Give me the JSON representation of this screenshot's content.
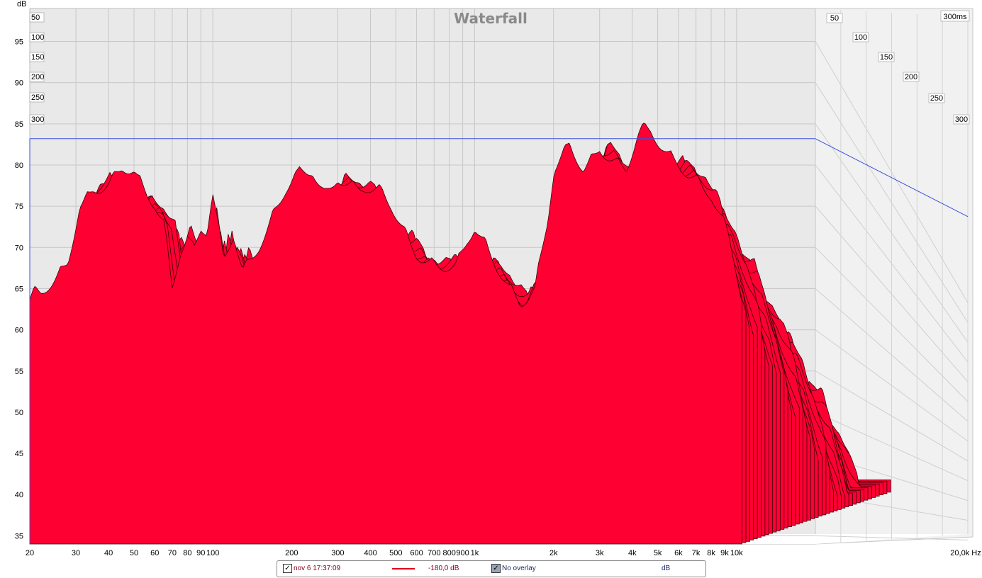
{
  "chart_data": {
    "type": "area",
    "title": "Waterfall",
    "ylabel": "dB",
    "xlabel_unit": "Hz",
    "ylim": [
      34,
      99
    ],
    "xlim": [
      20,
      20000
    ],
    "x_scale": "log",
    "y_ticks": [
      "95",
      "90",
      "85",
      "80",
      "75",
      "70",
      "65",
      "60",
      "55",
      "50",
      "45",
      "40",
      "35"
    ],
    "x_ticks": [
      {
        "v": 20,
        "t": "20"
      },
      {
        "v": 30,
        "t": "30"
      },
      {
        "v": 40,
        "t": "40"
      },
      {
        "v": 50,
        "t": "50"
      },
      {
        "v": 60,
        "t": "60"
      },
      {
        "v": 70,
        "t": "70"
      },
      {
        "v": 80,
        "t": "80"
      },
      {
        "v": 90,
        "t": "90"
      },
      {
        "v": 100,
        "t": "100"
      },
      {
        "v": 200,
        "t": "200"
      },
      {
        "v": 300,
        "t": "300"
      },
      {
        "v": 400,
        "t": "400"
      },
      {
        "v": 500,
        "t": "500"
      },
      {
        "v": 600,
        "t": "600"
      },
      {
        "v": 700,
        "t": "700"
      },
      {
        "v": 800,
        "t": "800"
      },
      {
        "v": 900,
        "t": "900"
      },
      {
        "v": 1000,
        "t": "1k"
      },
      {
        "v": 2000,
        "t": "2k"
      },
      {
        "v": 3000,
        "t": "3k"
      },
      {
        "v": 4000,
        "t": "4k"
      },
      {
        "v": 5000,
        "t": "5k"
      },
      {
        "v": 6000,
        "t": "6k"
      },
      {
        "v": 7000,
        "t": "7k"
      },
      {
        "v": 8000,
        "t": "8k"
      },
      {
        "v": 9000,
        "t": "9k"
      },
      {
        "v": 10000,
        "t": "10k"
      },
      {
        "v": 20000,
        "t": "20,0k Hz"
      }
    ],
    "time_labels": [
      "50",
      "100",
      "150",
      "200",
      "250",
      "300"
    ],
    "time_axis_label": "300ms",
    "reference_level_db": 83.2,
    "fill_color": "#ff0033",
    "outline_color": "#3a0008",
    "slices": 40,
    "envelope": {
      "freq": [
        20,
        22,
        25,
        28,
        31,
        35,
        40,
        45,
        50,
        55,
        60,
        65,
        70,
        75,
        80,
        85,
        90,
        95,
        100,
        110,
        120,
        130,
        150,
        170,
        190,
        210,
        240,
        270,
        300,
        340,
        380,
        430,
        480,
        540,
        600,
        680,
        760,
        850,
        950,
        1000,
        1100,
        1300,
        1500,
        1700,
        1900,
        2000,
        2300,
        2600,
        3000,
        3400,
        3800,
        4200,
        4700,
        5300,
        6000,
        7000,
        8000,
        9000,
        9800,
        10500
      ],
      "db": [
        65,
        66,
        69,
        72,
        79,
        80.5,
        80,
        80.5,
        81.5,
        80,
        79,
        77,
        69,
        73,
        74.5,
        72,
        74,
        73,
        78,
        71,
        75,
        71,
        74,
        77,
        79,
        80,
        82,
        80,
        82.5,
        81,
        80,
        78,
        77,
        75,
        73,
        72,
        71,
        70,
        72,
        74,
        73,
        70,
        67,
        68,
        75,
        80,
        85,
        83,
        86,
        84,
        82,
        85,
        86,
        85,
        84,
        82,
        79,
        74,
        70,
        66
      ]
    }
  },
  "legend": {
    "item_label": "nov 6 17:37:09",
    "level_label": "-180,0 dB",
    "overlay_label": "No overlay",
    "unit_label": "dB"
  }
}
